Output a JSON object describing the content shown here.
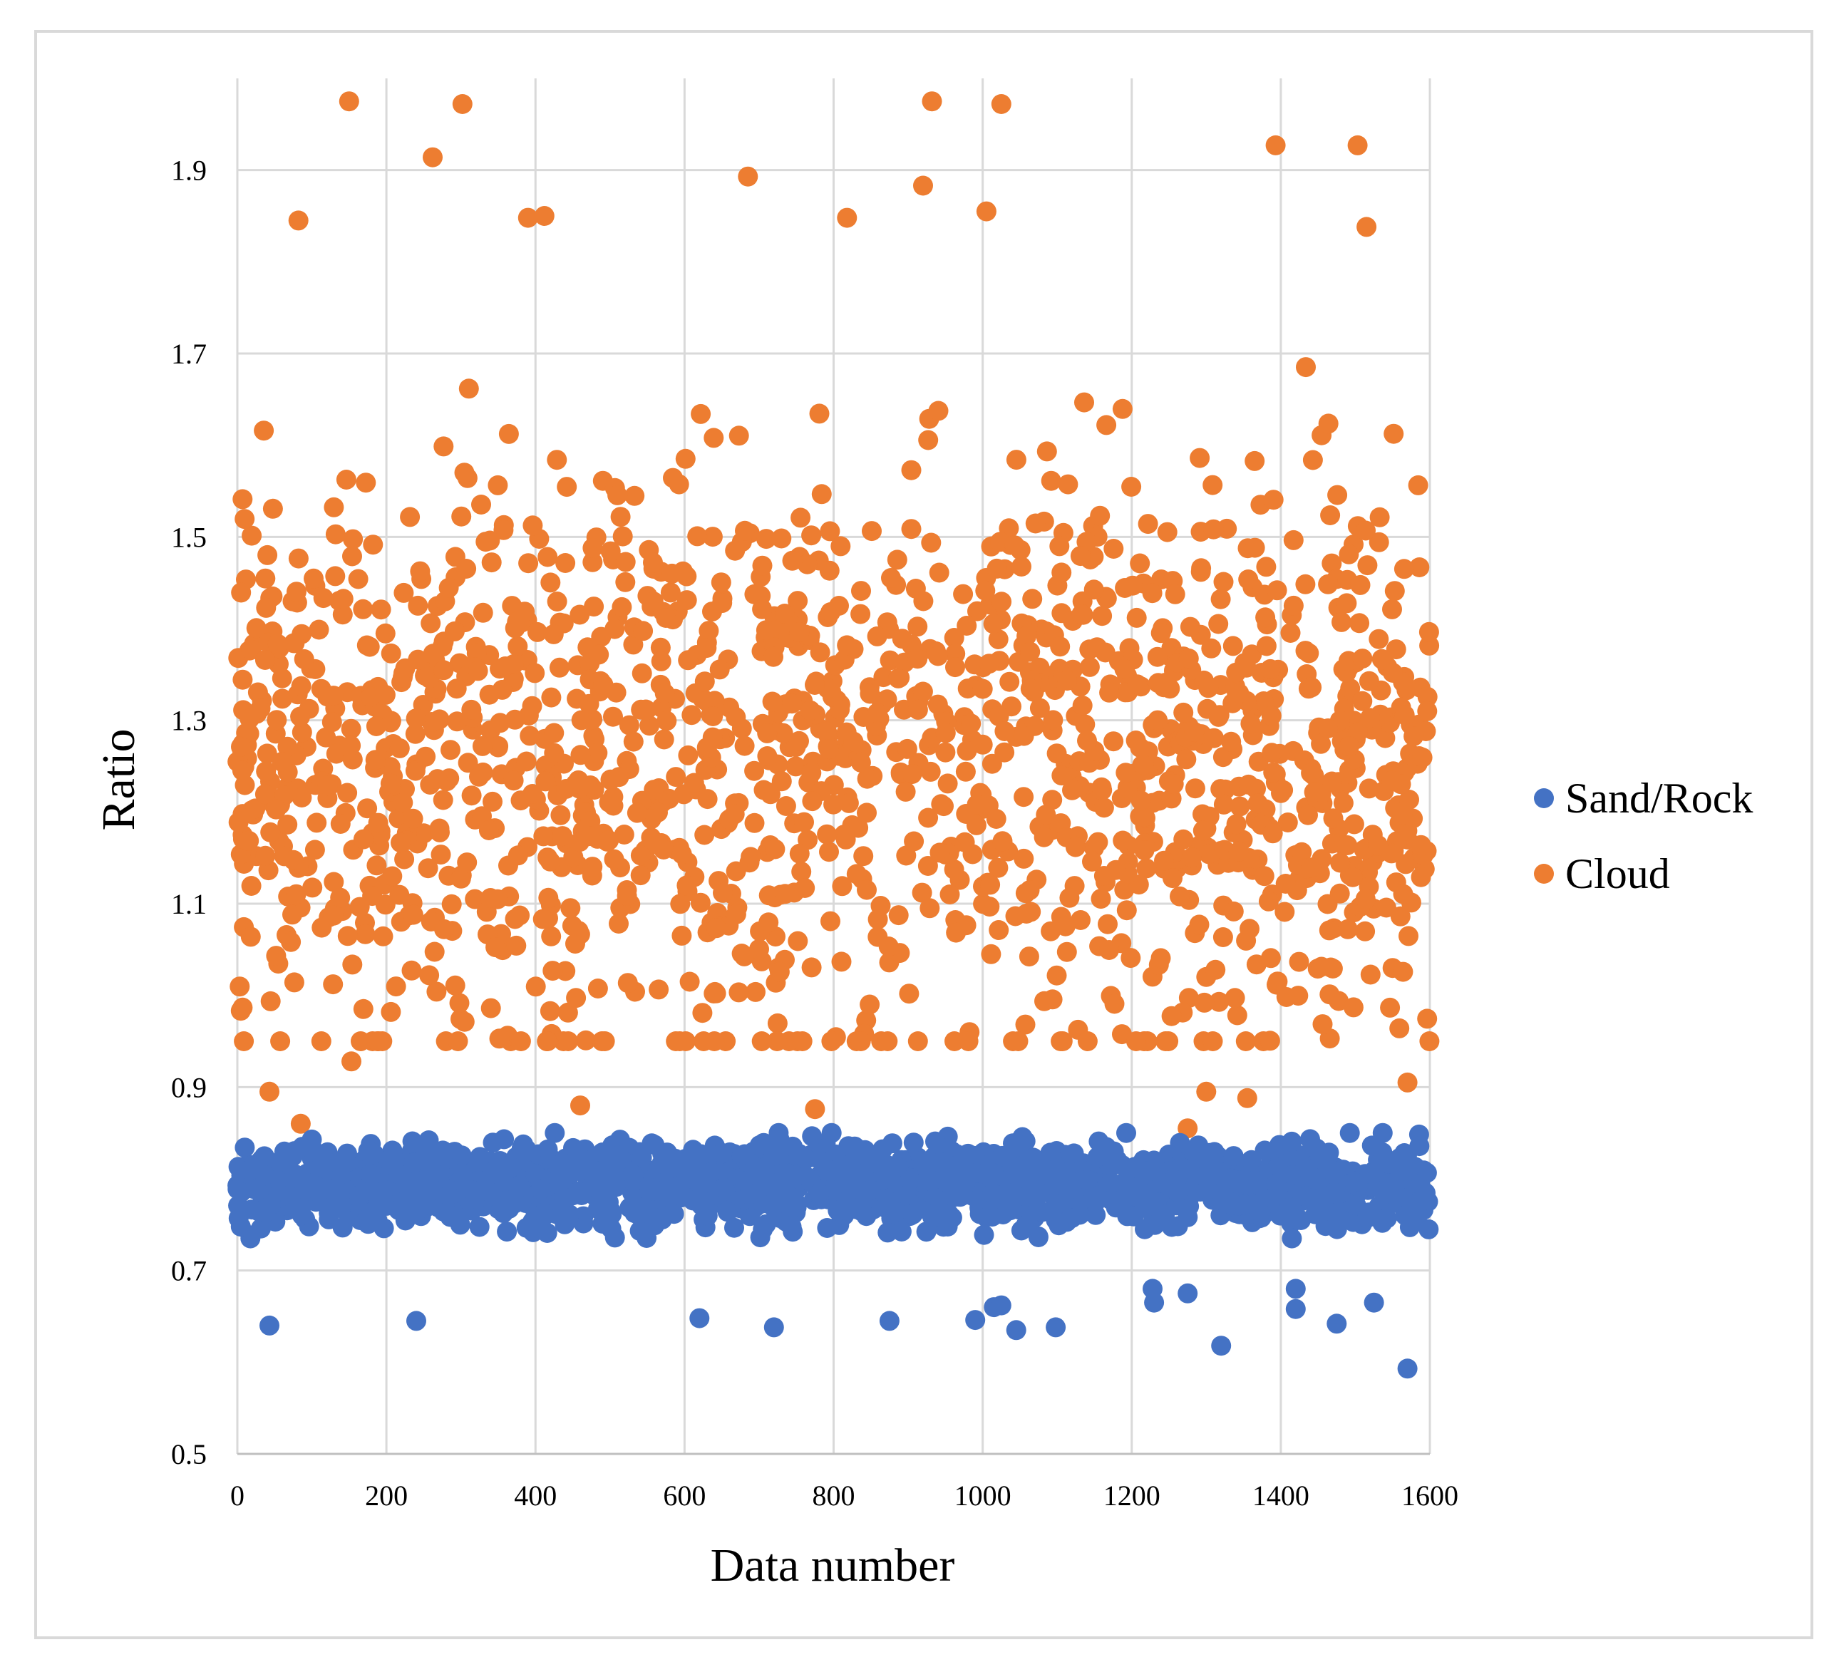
{
  "chart_data": {
    "type": "scatter",
    "title": "",
    "xlabel": "Data number",
    "ylabel": "Ratio",
    "xlim": [
      0,
      1600
    ],
    "ylim": [
      0.5,
      2.0
    ],
    "x_ticks": [
      "0",
      "200",
      "400",
      "600",
      "800",
      "1000",
      "1200",
      "1400",
      "1600"
    ],
    "y_ticks": [
      "0.5",
      "0.7",
      "0.9",
      "1.1",
      "1.3",
      "1.5",
      "1.7",
      "1.9"
    ],
    "grid": true,
    "legend_position": "right",
    "series": [
      {
        "name": "Sand/Rock",
        "color": "#4472C4",
        "count": 1600,
        "typical_range": [
          0.74,
          0.85
        ],
        "outliers": [
          [
            43,
            0.64
          ],
          [
            240,
            0.645
          ],
          [
            620,
            0.648
          ],
          [
            720,
            0.638
          ],
          [
            875,
            0.645
          ],
          [
            990,
            0.646
          ],
          [
            1015,
            0.66
          ],
          [
            1025,
            0.662
          ],
          [
            1045,
            0.635
          ],
          [
            1098,
            0.638
          ],
          [
            1320,
            0.618
          ],
          [
            1420,
            0.658
          ],
          [
            1475,
            0.642
          ],
          [
            1525,
            0.665
          ],
          [
            1570,
            0.593
          ],
          [
            1230,
            0.665
          ],
          [
            1275,
            0.675
          ],
          [
            1228,
            0.68
          ],
          [
            1420,
            0.68
          ]
        ]
      },
      {
        "name": "Cloud",
        "color": "#ED7D31",
        "count": 1600,
        "typical_range": [
          0.86,
          1.98
        ],
        "extremes": [
          [
            150,
            1.975
          ],
          [
            302,
            1.972
          ],
          [
            932,
            1.975
          ],
          [
            1025,
            1.972
          ],
          [
            262,
            1.914
          ],
          [
            685,
            1.893
          ],
          [
            920,
            1.883
          ],
          [
            1393,
            1.927
          ],
          [
            1503,
            1.927
          ],
          [
            82,
            1.845
          ],
          [
            390,
            1.848
          ],
          [
            412,
            1.85
          ],
          [
            818,
            1.848
          ],
          [
            1005,
            1.855
          ],
          [
            1515,
            1.838
          ],
          [
            43,
            0.895
          ],
          [
            153,
            0.928
          ],
          [
            460,
            0.88
          ],
          [
            775,
            0.876
          ],
          [
            85,
            0.86
          ],
          [
            1570,
            0.905
          ],
          [
            1275,
            0.855
          ],
          [
            1355,
            0.888
          ],
          [
            1300,
            0.895
          ]
        ]
      }
    ]
  }
}
